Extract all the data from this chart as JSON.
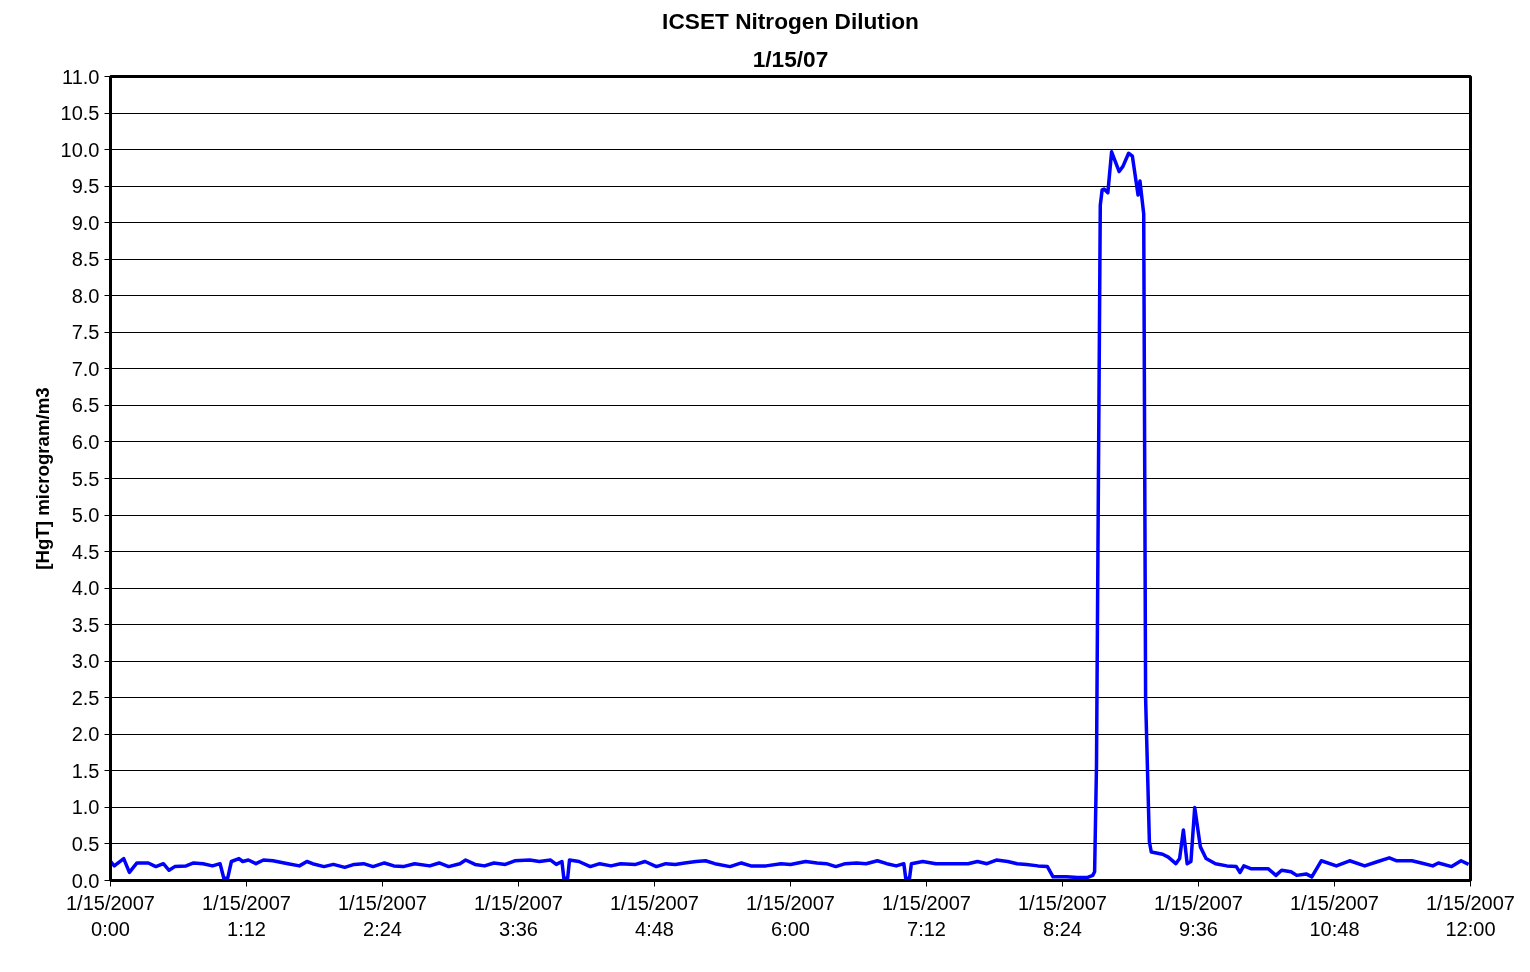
{
  "chart_data": {
    "type": "line",
    "title": "ICSET Nitrogen Dilution",
    "subtitle": "1/15/07",
    "ylabel": "[HgT] microgram/m3",
    "x": [
      "2007-01-15T00:00",
      "2007-01-15T00:02",
      "2007-01-15T00:07",
      "2007-01-15T00:10",
      "2007-01-15T00:14",
      "2007-01-15T00:20",
      "2007-01-15T00:24",
      "2007-01-15T00:28",
      "2007-01-15T00:31",
      "2007-01-15T00:34",
      "2007-01-15T00:40",
      "2007-01-15T00:44",
      "2007-01-15T00:49",
      "2007-01-15T00:54",
      "2007-01-15T00:58",
      "2007-01-15T01:00",
      "2007-01-15T01:02",
      "2007-01-15T01:04",
      "2007-01-15T01:08",
      "2007-01-15T01:10",
      "2007-01-15T01:13",
      "2007-01-15T01:17",
      "2007-01-15T01:21",
      "2007-01-15T01:26",
      "2007-01-15T01:34",
      "2007-01-15T01:40",
      "2007-01-15T01:44",
      "2007-01-15T01:47",
      "2007-01-15T01:53",
      "2007-01-15T01:58",
      "2007-01-15T02:04",
      "2007-01-15T02:09",
      "2007-01-15T02:14",
      "2007-01-15T02:19",
      "2007-01-15T02:25",
      "2007-01-15T02:30",
      "2007-01-15T02:35",
      "2007-01-15T02:41",
      "2007-01-15T02:49",
      "2007-01-15T02:54",
      "2007-01-15T02:59",
      "2007-01-15T03:05",
      "2007-01-15T03:08",
      "2007-01-15T03:13",
      "2007-01-15T03:18",
      "2007-01-15T03:23",
      "2007-01-15T03:29",
      "2007-01-15T03:34",
      "2007-01-15T03:42",
      "2007-01-15T03:47",
      "2007-01-15T03:53",
      "2007-01-15T03:56",
      "2007-01-15T03:59",
      "2007-01-15T04:00",
      "2007-01-15T04:02",
      "2007-01-15T04:03",
      "2007-01-15T04:08",
      "2007-01-15T04:14",
      "2007-01-15T04:19",
      "2007-01-15T04:25",
      "2007-01-15T04:30",
      "2007-01-15T04:38",
      "2007-01-15T04:43",
      "2007-01-15T04:49",
      "2007-01-15T04:54",
      "2007-01-15T04:59",
      "2007-01-15T05:04",
      "2007-01-15T05:10",
      "2007-01-15T05:15",
      "2007-01-15T05:20",
      "2007-01-15T05:28",
      "2007-01-15T05:34",
      "2007-01-15T05:39",
      "2007-01-15T05:47",
      "2007-01-15T05:55",
      "2007-01-15T06:00",
      "2007-01-15T06:08",
      "2007-01-15T06:14",
      "2007-01-15T06:19",
      "2007-01-15T06:24",
      "2007-01-15T06:29",
      "2007-01-15T06:35",
      "2007-01-15T06:40",
      "2007-01-15T06:46",
      "2007-01-15T06:51",
      "2007-01-15T06:56",
      "2007-01-15T07:00",
      "2007-01-15T07:01",
      "2007-01-15T07:03",
      "2007-01-15T07:04",
      "2007-01-15T07:10",
      "2007-01-15T07:17",
      "2007-01-15T07:25",
      "2007-01-15T07:34",
      "2007-01-15T07:39",
      "2007-01-15T07:44",
      "2007-01-15T07:49",
      "2007-01-15T07:55",
      "2007-01-15T08:00",
      "2007-01-15T08:05",
      "2007-01-15T08:11",
      "2007-01-15T08:16",
      "2007-01-15T08:19",
      "2007-01-15T08:23",
      "2007-01-15T08:26",
      "2007-01-15T08:32",
      "2007-01-15T08:37",
      "2007-01-15T08:40",
      "2007-01-15T08:41",
      "2007-01-15T08:42",
      "2007-01-15T08:44",
      "2007-01-15T08:45",
      "2007-01-15T08:46",
      "2007-01-15T08:48",
      "2007-01-15T08:50",
      "2007-01-15T08:54",
      "2007-01-15T08:56",
      "2007-01-15T08:59",
      "2007-01-15T09:01",
      "2007-01-15T09:04",
      "2007-01-15T09:05",
      "2007-01-15T09:07",
      "2007-01-15T09:08",
      "2007-01-15T09:10",
      "2007-01-15T09:11",
      "2007-01-15T09:17",
      "2007-01-15T09:20",
      "2007-01-15T09:24",
      "2007-01-15T09:26",
      "2007-01-15T09:28",
      "2007-01-15T09:30",
      "2007-01-15T09:32",
      "2007-01-15T09:34",
      "2007-01-15T09:37",
      "2007-01-15T09:40",
      "2007-01-15T09:45",
      "2007-01-15T09:51",
      "2007-01-15T09:56",
      "2007-01-15T09:58",
      "2007-01-15T10:00",
      "2007-01-15T10:04",
      "2007-01-15T10:13",
      "2007-01-15T10:17",
      "2007-01-15T10:20",
      "2007-01-15T10:25",
      "2007-01-15T10:28",
      "2007-01-15T10:33",
      "2007-01-15T10:36",
      "2007-01-15T10:41",
      "2007-01-15T10:49",
      "2007-01-15T10:56",
      "2007-01-15T11:04",
      "2007-01-15T11:11",
      "2007-01-15T11:17",
      "2007-01-15T11:21",
      "2007-01-15T11:29",
      "2007-01-15T11:34",
      "2007-01-15T11:40",
      "2007-01-15T11:43",
      "2007-01-15T11:50",
      "2007-01-15T11:55",
      "2007-01-15T11:59"
    ],
    "series": [
      {
        "color": "#0000ff",
        "values": [
          0.26,
          0.2,
          0.3,
          0.11,
          0.24,
          0.24,
          0.19,
          0.23,
          0.14,
          0.19,
          0.2,
          0.24,
          0.23,
          0.2,
          0.23,
          0.03,
          0.03,
          0.26,
          0.3,
          0.26,
          0.28,
          0.23,
          0.28,
          0.27,
          0.23,
          0.2,
          0.26,
          0.23,
          0.19,
          0.22,
          0.18,
          0.22,
          0.23,
          0.19,
          0.24,
          0.2,
          0.19,
          0.23,
          0.2,
          0.24,
          0.19,
          0.23,
          0.28,
          0.22,
          0.2,
          0.24,
          0.22,
          0.27,
          0.28,
          0.26,
          0.28,
          0.22,
          0.26,
          0.03,
          0.03,
          0.28,
          0.26,
          0.19,
          0.23,
          0.2,
          0.23,
          0.22,
          0.26,
          0.19,
          0.23,
          0.22,
          0.24,
          0.26,
          0.27,
          0.23,
          0.19,
          0.24,
          0.2,
          0.2,
          0.23,
          0.22,
          0.26,
          0.24,
          0.23,
          0.19,
          0.23,
          0.24,
          0.23,
          0.27,
          0.23,
          0.2,
          0.23,
          0.03,
          0.03,
          0.23,
          0.26,
          0.23,
          0.23,
          0.23,
          0.26,
          0.23,
          0.28,
          0.26,
          0.23,
          0.22,
          0.2,
          0.19,
          0.05,
          0.05,
          0.05,
          0.04,
          0.04,
          0.07,
          0.12,
          1.58,
          9.24,
          9.45,
          9.46,
          9.41,
          9.97,
          9.7,
          9.77,
          9.95,
          9.91,
          9.38,
          9.57,
          9.12,
          2.49,
          0.53,
          0.39,
          0.36,
          0.32,
          0.23,
          0.3,
          0.69,
          0.23,
          0.26,
          1.0,
          0.46,
          0.3,
          0.23,
          0.2,
          0.19,
          0.11,
          0.2,
          0.16,
          0.16,
          0.07,
          0.14,
          0.12,
          0.07,
          0.09,
          0.05,
          0.27,
          0.2,
          0.27,
          0.2,
          0.26,
          0.31,
          0.27,
          0.27,
          0.24,
          0.2,
          0.24,
          0.19,
          0.27,
          0.22
        ]
      }
    ],
    "xlim": [
      "2007-01-15T00:00",
      "2007-01-15T12:00"
    ],
    "xticks": [
      {
        "value": "2007-01-15T00:00",
        "label": "1/15/2007\n0:00"
      },
      {
        "value": "2007-01-15T01:12",
        "label": "1/15/2007\n1:12"
      },
      {
        "value": "2007-01-15T02:24",
        "label": "1/15/2007\n2:24"
      },
      {
        "value": "2007-01-15T03:36",
        "label": "1/15/2007\n3:36"
      },
      {
        "value": "2007-01-15T04:48",
        "label": "1/15/2007\n4:48"
      },
      {
        "value": "2007-01-15T06:00",
        "label": "1/15/2007\n6:00"
      },
      {
        "value": "2007-01-15T07:12",
        "label": "1/15/2007\n7:12"
      },
      {
        "value": "2007-01-15T08:24",
        "label": "1/15/2007\n8:24"
      },
      {
        "value": "2007-01-15T09:36",
        "label": "1/15/2007\n9:36"
      },
      {
        "value": "2007-01-15T10:48",
        "label": "1/15/2007\n10:48"
      },
      {
        "value": "2007-01-15T12:00",
        "label": "1/15/2007\n12:00"
      }
    ],
    "ylim": [
      0,
      11
    ],
    "yticks": [
      {
        "value": 0,
        "label": "0.0"
      },
      {
        "value": 0.5,
        "label": "0.5"
      },
      {
        "value": 1,
        "label": "1.0"
      },
      {
        "value": 1.5,
        "label": "1.5"
      },
      {
        "value": 2,
        "label": "2.0"
      },
      {
        "value": 2.5,
        "label": "2.5"
      },
      {
        "value": 3,
        "label": "3.0"
      },
      {
        "value": 3.5,
        "label": "3.5"
      },
      {
        "value": 4,
        "label": "4.0"
      },
      {
        "value": 4.5,
        "label": "4.5"
      },
      {
        "value": 5,
        "label": "5.0"
      },
      {
        "value": 5.5,
        "label": "5.5"
      },
      {
        "value": 6,
        "label": "6.0"
      },
      {
        "value": 6.5,
        "label": "6.5"
      },
      {
        "value": 7,
        "label": "7.0"
      },
      {
        "value": 7.5,
        "label": "7.5"
      },
      {
        "value": 8,
        "label": "8.0"
      },
      {
        "value": 8.5,
        "label": "8.5"
      },
      {
        "value": 9,
        "label": "9.0"
      },
      {
        "value": 9.5,
        "label": "9.5"
      },
      {
        "value": 10,
        "label": "10.0"
      },
      {
        "value": 10.5,
        "label": "10.5"
      },
      {
        "value": 11,
        "label": "11.0"
      }
    ],
    "grid": "y",
    "marker": "none",
    "line_style": "solid"
  }
}
